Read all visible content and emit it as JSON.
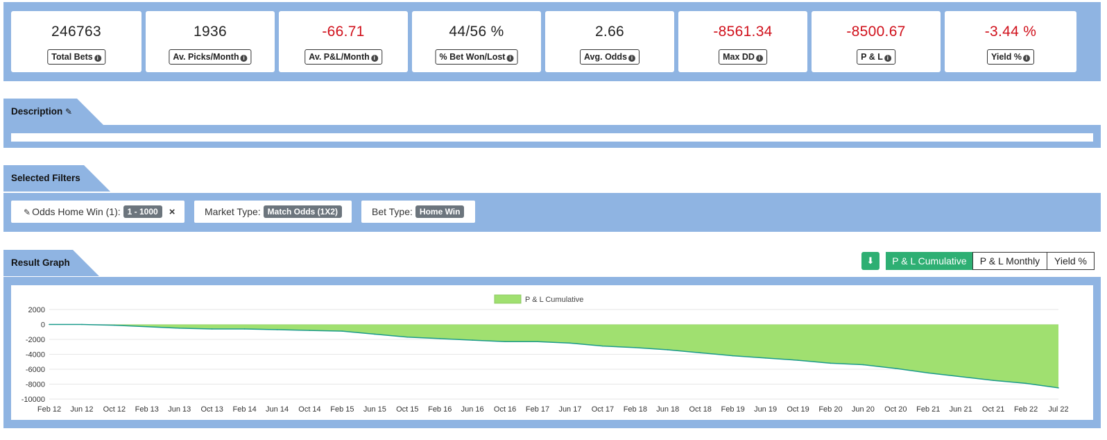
{
  "stats": [
    {
      "value": "246763",
      "label": "Total Bets",
      "tone": "pos"
    },
    {
      "value": "1936",
      "label": "Av. Picks/Month",
      "tone": "pos"
    },
    {
      "value": "-66.71",
      "label": "Av. P&L/Month",
      "tone": "neg"
    },
    {
      "value": "44/56 %",
      "label": "% Bet Won/Lost",
      "tone": "pos"
    },
    {
      "value": "2.66",
      "label": "Avg. Odds",
      "tone": "pos"
    },
    {
      "value": "-8561.34",
      "label": "Max DD",
      "tone": "neg"
    },
    {
      "value": "-8500.67",
      "label": "P & L",
      "tone": "neg"
    },
    {
      "value": "-3.44 %",
      "label": "Yield %",
      "tone": "neg"
    }
  ],
  "description": {
    "title": "Description"
  },
  "filters": {
    "title": "Selected Filters",
    "items": [
      {
        "label": "Odds Home Win (1):",
        "value": "1 - 1000",
        "editable": true,
        "removable": true
      },
      {
        "label": "Market Type:",
        "value": "Match Odds (1X2)",
        "editable": false,
        "removable": false
      },
      {
        "label": "Bet Type:",
        "value": "Home Win",
        "editable": false,
        "removable": false
      }
    ]
  },
  "graph": {
    "title": "Result Graph",
    "buttons": [
      "P & L Cumulative",
      "P & L Monthly",
      "Yield %"
    ],
    "active": "P & L Cumulative"
  },
  "colors": {
    "band": "#8fb4e2",
    "accent": "#2eaf73",
    "negative": "#d0101b",
    "area_fill": "#a0e070",
    "area_line": "#1a9a8a"
  },
  "chart_data": {
    "type": "area",
    "legend": [
      "P & L Cumulative"
    ],
    "legend_position": "top-center",
    "grid": true,
    "ylim": [
      -10000,
      2000
    ],
    "yticks": [
      2000,
      0,
      -2000,
      -4000,
      -6000,
      -8000,
      -10000
    ],
    "xticks": [
      "Feb 12",
      "Jun 12",
      "Oct 12",
      "Feb 13",
      "Jun 13",
      "Oct 13",
      "Feb 14",
      "Jun 14",
      "Oct 14",
      "Feb 15",
      "Jun 15",
      "Oct 15",
      "Feb 16",
      "Jun 16",
      "Oct 16",
      "Feb 17",
      "Jun 17",
      "Oct 17",
      "Feb 18",
      "Jun 18",
      "Oct 18",
      "Feb 19",
      "Jun 19",
      "Oct 19",
      "Feb 20",
      "Jun 20",
      "Oct 20",
      "Feb 21",
      "Jun 21",
      "Oct 21",
      "Feb 22",
      "Jul 22"
    ],
    "series": [
      {
        "name": "P & L Cumulative",
        "x": [
          "Feb 12",
          "Jun 12",
          "Oct 12",
          "Feb 13",
          "Jun 13",
          "Oct 13",
          "Feb 14",
          "Jun 14",
          "Oct 14",
          "Feb 15",
          "Jun 15",
          "Oct 15",
          "Feb 16",
          "Jun 16",
          "Oct 16",
          "Feb 17",
          "Jun 17",
          "Oct 17",
          "Feb 18",
          "Jun 18",
          "Oct 18",
          "Feb 19",
          "Jun 19",
          "Oct 19",
          "Feb 20",
          "Jun 20",
          "Oct 20",
          "Feb 21",
          "Jun 21",
          "Oct 21",
          "Feb 22",
          "Jul 22"
        ],
        "values": [
          0,
          0,
          -100,
          -300,
          -500,
          -600,
          -600,
          -700,
          -800,
          -900,
          -1300,
          -1700,
          -1900,
          -2100,
          -2300,
          -2300,
          -2500,
          -2900,
          -3100,
          -3400,
          -3800,
          -4200,
          -4500,
          -4800,
          -5200,
          -5400,
          -5900,
          -6500,
          -7000,
          -7500,
          -7900,
          -8500
        ]
      }
    ]
  }
}
